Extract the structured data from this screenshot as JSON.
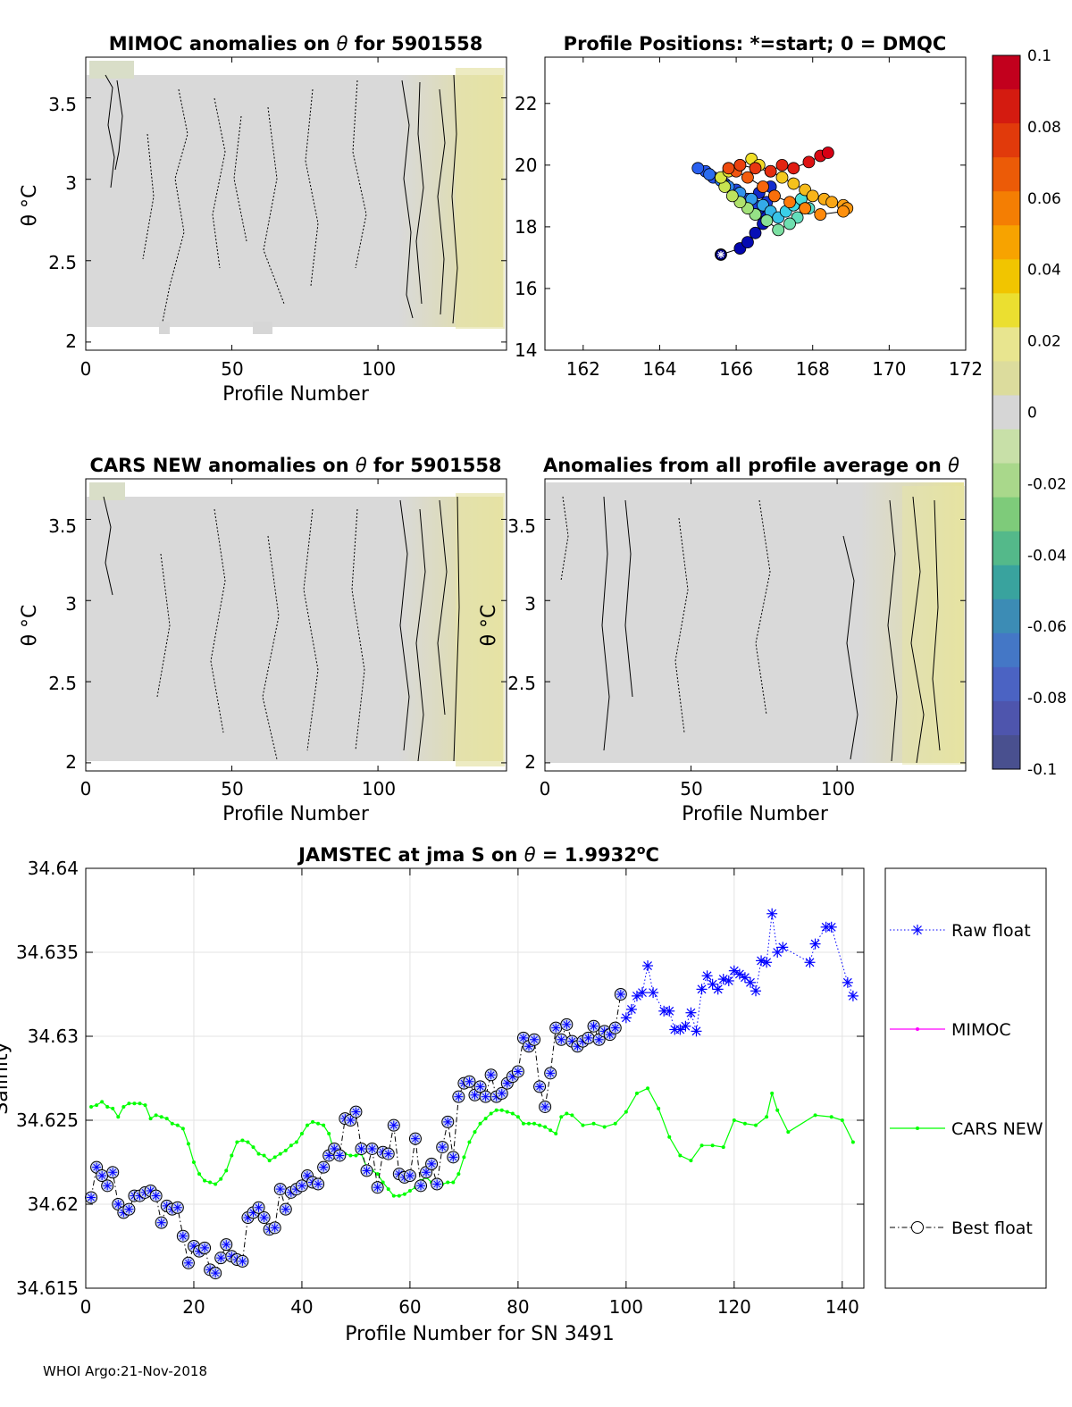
{
  "footer": "WHOI Argo:21-Nov-2018",
  "colorbar": {
    "ticks": [
      "0.1",
      "0.08",
      "0.06",
      "0.04",
      "0.02",
      "0",
      "-0.02",
      "-0.04",
      "-0.06",
      "-0.08",
      "-0.1"
    ],
    "colors_top_to_bottom": [
      "#c2001d",
      "#d41b10",
      "#e13a0b",
      "#ec5b07",
      "#f47e03",
      "#f7a300",
      "#f1c500",
      "#ebdf30",
      "#e8e58f",
      "#dcdc9d",
      "#d6d6d6",
      "#c8e0a8",
      "#a9d88b",
      "#7ecb7a",
      "#54b98a",
      "#39a39e",
      "#3c8cb5",
      "#4477c6",
      "#4b63c3",
      "#4e55ad",
      "#49508f"
    ]
  },
  "chart_data": [
    {
      "type": "heatmap",
      "title_prefix": "MIMOC anomalies on ",
      "title_symbol": "θ",
      "title_suffix": " for 5901558",
      "xlabel": "Profile Number",
      "ylabel": "θ °C",
      "xlim": [
        0,
        144
      ],
      "ylim": [
        1.95,
        3.75
      ],
      "xticks": [
        "0",
        "50",
        "100"
      ],
      "yticks": [
        "2",
        "2.5",
        "3",
        "3.5"
      ]
    },
    {
      "type": "scatter",
      "title": "Profile Positions: *=start; 0 = DMQC",
      "xlim": [
        161,
        172
      ],
      "ylim": [
        14,
        23.5
      ],
      "xticks": [
        "162",
        "164",
        "166",
        "168",
        "170",
        "172"
      ],
      "yticks": [
        "14",
        "16",
        "18",
        "20",
        "22"
      ],
      "start": [
        165.6,
        17.1
      ],
      "track_lon": [
        165.6,
        166.1,
        166.3,
        166.5,
        166.7,
        166.8,
        166.6,
        166.4,
        166.6,
        166.9,
        167.0,
        166.8,
        166.5,
        166.3,
        166.0,
        165.7,
        165.4,
        165.2,
        165.0,
        165.3,
        165.6,
        165.8,
        166.1,
        166.4,
        166.7,
        166.9,
        167.1,
        167.3,
        167.5,
        167.7,
        167.9,
        167.6,
        167.4,
        167.1,
        166.8,
        166.5,
        166.3,
        166.1,
        165.9,
        165.7,
        165.6,
        165.8,
        166.1,
        166.4,
        166.6,
        166.9,
        167.2,
        167.5,
        167.8,
        168.0,
        168.3,
        168.5,
        168.8,
        168.9,
        168.8,
        168.2,
        167.8,
        167.4,
        167.0,
        166.7,
        166.3,
        166.0,
        165.8,
        166.1,
        166.5,
        166.9,
        167.2,
        167.5,
        167.9,
        168.2,
        168.4
      ],
      "track_lat": [
        17.1,
        17.3,
        17.5,
        17.8,
        18.1,
        18.4,
        18.6,
        18.9,
        19.1,
        19.3,
        19.0,
        18.8,
        18.7,
        18.9,
        19.2,
        19.4,
        19.6,
        19.8,
        19.9,
        19.7,
        19.5,
        19.3,
        19.1,
        18.9,
        18.7,
        18.5,
        18.3,
        18.5,
        18.7,
        18.9,
        18.6,
        18.3,
        18.1,
        17.9,
        18.2,
        18.4,
        18.6,
        18.8,
        19.0,
        19.3,
        19.6,
        19.8,
        20.0,
        20.2,
        20.0,
        19.8,
        19.6,
        19.4,
        19.2,
        19.0,
        18.9,
        18.8,
        18.7,
        18.6,
        18.5,
        18.4,
        18.6,
        18.8,
        19.0,
        19.3,
        19.6,
        19.8,
        19.9,
        20.0,
        19.9,
        19.8,
        20.0,
        19.9,
        20.1,
        20.3,
        20.4
      ],
      "color_scale": "profile order (blue→cyan→yellow→red)"
    },
    {
      "type": "heatmap",
      "title_prefix": "CARS NEW anomalies on ",
      "title_symbol": "θ",
      "title_suffix": " for 5901558",
      "xlabel": "Profile Number",
      "ylabel": "θ °C",
      "xlim": [
        0,
        144
      ],
      "ylim": [
        1.95,
        3.75
      ],
      "xticks": [
        "0",
        "50",
        "100"
      ],
      "yticks": [
        "2",
        "2.5",
        "3",
        "3.5"
      ]
    },
    {
      "type": "heatmap",
      "title_prefix": "Anomalies from all profile average on ",
      "title_symbol": "θ",
      "title_suffix": "",
      "xlabel": "Profile Number",
      "ylabel": "θ °C",
      "xlim": [
        0,
        144
      ],
      "ylim": [
        1.95,
        3.75
      ],
      "xticks": [
        "0",
        "50",
        "100"
      ],
      "yticks": [
        "2",
        "2.5",
        "3",
        "3.5"
      ]
    },
    {
      "type": "line",
      "title_prefix": "JAMSTEC at jma S on ",
      "title_symbol": "θ",
      "title_suffix": " = 1.9932",
      "title_sup": "o",
      "title_end": "C",
      "xlabel": "Profile Number for SN 3491",
      "ylabel": "Salinity",
      "xlim": [
        0,
        144
      ],
      "ylim": [
        34.615,
        34.64
      ],
      "xticks": [
        "0",
        "20",
        "40",
        "60",
        "80",
        "100",
        "120",
        "140"
      ],
      "yticks": [
        "34.615",
        "34.62",
        "34.625",
        "34.63",
        "34.635",
        "34.64"
      ],
      "grid": true,
      "legend": [
        "Raw float",
        "MIMOC",
        "CARS NEW",
        "Best float"
      ],
      "legend_placement": "outside-right",
      "raw_x": [
        100,
        101,
        102,
        103,
        104,
        105,
        107,
        108,
        109,
        110,
        111,
        112,
        113,
        114,
        115,
        116,
        117,
        118,
        119,
        120,
        121,
        122,
        123,
        124,
        125,
        126,
        127,
        128,
        129,
        134,
        135,
        137,
        138,
        141,
        142
      ],
      "raw_y": [
        34.6311,
        34.6316,
        34.6324,
        34.6326,
        34.6342,
        34.6326,
        34.6315,
        34.6315,
        34.6304,
        34.6304,
        34.6306,
        34.6314,
        34.6303,
        34.6328,
        34.6336,
        34.6331,
        34.6328,
        34.6334,
        34.6333,
        34.6339,
        34.6337,
        34.6335,
        34.6332,
        34.6327,
        34.6345,
        34.6344,
        34.6373,
        34.635,
        34.6353,
        34.6344,
        34.6355,
        34.6365,
        34.6365,
        34.6332,
        34.6324
      ],
      "best_x": [
        1,
        2,
        3,
        4,
        5,
        6,
        7,
        8,
        9,
        10,
        11,
        12,
        13,
        14,
        15,
        16,
        17,
        18,
        19,
        20,
        21,
        22,
        23,
        24,
        25,
        26,
        27,
        28,
        29,
        30,
        31,
        32,
        33,
        34,
        35,
        36,
        37,
        38,
        39,
        40,
        41,
        42,
        43,
        44,
        45,
        46,
        47,
        48,
        49,
        50,
        51,
        52,
        53,
        54,
        55,
        56,
        57,
        58,
        59,
        60,
        61,
        62,
        63,
        64,
        65,
        66,
        67,
        68,
        69,
        70,
        71,
        72,
        73,
        74,
        75,
        76,
        77,
        78,
        79,
        80,
        81,
        82,
        83,
        84,
        85,
        86,
        87,
        88,
        89,
        90,
        91,
        92,
        93,
        94,
        95,
        96,
        97,
        98,
        99
      ],
      "best_y": [
        34.6204,
        34.6222,
        34.6217,
        34.6211,
        34.6219,
        34.62,
        34.6195,
        34.6197,
        34.6205,
        34.6205,
        34.6207,
        34.6208,
        34.6205,
        34.6189,
        34.6199,
        34.6197,
        34.6198,
        34.6181,
        34.6165,
        34.6175,
        34.6172,
        34.6174,
        34.6161,
        34.6159,
        34.6168,
        34.6176,
        34.6169,
        34.6167,
        34.6166,
        34.6192,
        34.6195,
        34.6198,
        34.6192,
        34.6185,
        34.6186,
        34.6209,
        34.6197,
        34.6207,
        34.6209,
        34.6211,
        34.6217,
        34.6213,
        34.6212,
        34.6222,
        34.6229,
        34.6233,
        34.6229,
        34.6251,
        34.625,
        34.6255,
        34.6233,
        34.622,
        34.6233,
        34.621,
        34.6231,
        34.623,
        34.6247,
        34.6218,
        34.6216,
        34.6217,
        34.6239,
        34.6211,
        34.6219,
        34.6224,
        34.6212,
        34.6234,
        34.6249,
        34.6228,
        34.6264,
        34.6272,
        34.6273,
        34.6265,
        34.627,
        34.6264,
        34.6277,
        34.6264,
        34.6266,
        34.6272,
        34.6276,
        34.6279,
        34.6299,
        34.6294,
        34.6298,
        34.627,
        34.6258,
        34.6278,
        34.6305,
        34.6298,
        34.6307,
        34.6297,
        34.6294,
        34.6297,
        34.6299,
        34.6306,
        34.6298,
        34.6303,
        34.6301,
        34.6305,
        34.6325
      ],
      "cars_x": [
        1,
        2,
        3,
        4,
        5,
        6,
        7,
        8,
        9,
        10,
        11,
        12,
        13,
        14,
        15,
        16,
        17,
        18,
        19,
        20,
        21,
        22,
        23,
        24,
        25,
        26,
        27,
        28,
        29,
        30,
        31,
        32,
        33,
        34,
        35,
        36,
        37,
        38,
        39,
        40,
        41,
        42,
        43,
        44,
        45,
        46,
        47,
        48,
        49,
        50,
        51,
        52,
        53,
        54,
        55,
        56,
        57,
        58,
        59,
        60,
        61,
        62,
        63,
        64,
        65,
        66,
        67,
        68,
        69,
        70,
        71,
        72,
        73,
        74,
        75,
        76,
        77,
        78,
        79,
        80,
        81,
        82,
        83,
        84,
        85,
        86,
        87,
        88,
        89,
        90,
        92,
        94,
        96,
        98,
        100,
        102,
        104,
        106,
        108,
        110,
        112,
        114,
        116,
        118,
        120,
        122,
        124,
        126,
        127,
        128,
        130,
        135,
        138,
        140,
        142
      ],
      "cars_y": [
        34.6258,
        34.6259,
        34.6261,
        34.6258,
        34.6257,
        34.6252,
        34.6258,
        34.626,
        34.626,
        34.626,
        34.6259,
        34.6251,
        34.6253,
        34.6252,
        34.6251,
        34.6248,
        34.6247,
        34.6245,
        34.6236,
        34.6225,
        34.6218,
        34.6214,
        34.6213,
        34.6212,
        34.6215,
        34.622,
        34.6229,
        34.6237,
        34.6238,
        34.6237,
        34.6234,
        34.623,
        34.6229,
        34.6226,
        34.6228,
        34.623,
        34.6232,
        34.6235,
        34.6237,
        34.6242,
        34.6247,
        34.6249,
        34.6248,
        34.6247,
        34.6242,
        34.6231,
        34.623,
        34.623,
        34.6229,
        34.6229,
        34.623,
        34.6222,
        34.622,
        34.6218,
        34.6213,
        34.6209,
        34.6205,
        34.6205,
        34.6206,
        34.6208,
        34.621,
        34.6214,
        34.6216,
        34.6213,
        34.6213,
        34.6212,
        34.6213,
        34.6213,
        34.6218,
        34.6228,
        34.6237,
        34.6243,
        34.6248,
        34.6251,
        34.6254,
        34.6256,
        34.6256,
        34.6255,
        34.6254,
        34.6252,
        34.6248,
        34.6248,
        34.6248,
        34.6247,
        34.6246,
        34.6244,
        34.6242,
        34.6252,
        34.6254,
        34.6253,
        34.6247,
        34.6248,
        34.6246,
        34.6248,
        34.6255,
        34.6266,
        34.6269,
        34.6257,
        34.624,
        34.6229,
        34.6226,
        34.6235,
        34.6235,
        34.6234,
        34.625,
        34.6248,
        34.6247,
        34.6252,
        34.6266,
        34.6256,
        34.6243,
        34.6253,
        34.6252,
        34.625,
        34.6237
      ]
    }
  ]
}
